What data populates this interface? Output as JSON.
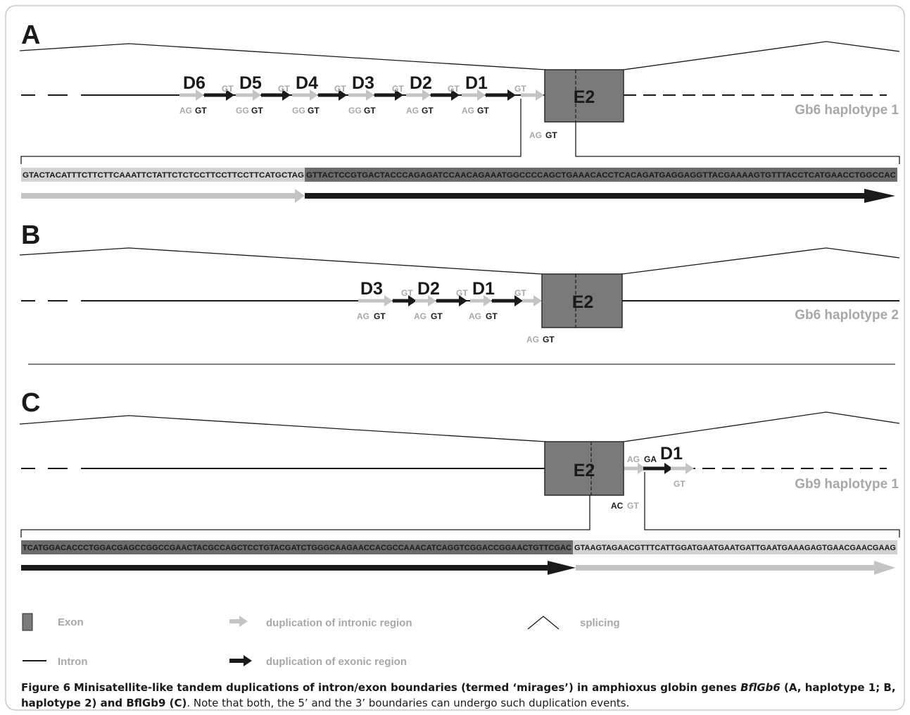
{
  "panels": {
    "A": {
      "letter": "A",
      "haplotype": "Gb6 haplotype 1",
      "exon": "E2",
      "dups": [
        {
          "name": "D6",
          "left": "AG",
          "right": "GT"
        },
        {
          "name": "D5",
          "left": "GG",
          "right": "GT"
        },
        {
          "name": "D4",
          "left": "GG",
          "right": "GT"
        },
        {
          "name": "D3",
          "left": "GG",
          "right": "GT"
        },
        {
          "name": "D2",
          "left": "AG",
          "right": "GT"
        },
        {
          "name": "D1",
          "left": "AG",
          "right": "GT"
        }
      ],
      "small_gt": "GT",
      "exon_site": {
        "left": "AG",
        "right": "GT"
      },
      "seq_intron": "GTACTACATTTCTTCTTCAAATTCTATTCTCTCCTTCCTTCCTTCATGCTAG",
      "seq_exon": "GTTACTCCGTGACTACCCAGAGATCCAACAGAAATGGCCCCAGCTGAAACACCTCACAGATGAGGAGGTTACGAAAAGTGTTTACCTCATGAACCTGGCCAC"
    },
    "B": {
      "letter": "B",
      "haplotype": "Gb6 haplotype 2",
      "exon": "E2",
      "dups": [
        {
          "name": "D3",
          "left": "AG",
          "right": "GT"
        },
        {
          "name": "D2",
          "left": "AG",
          "right": "GT"
        },
        {
          "name": "D1",
          "left": "AG",
          "right": "GT"
        }
      ],
      "small_gt": "GT",
      "exon_site": {
        "left": "AG",
        "right": "GT"
      }
    },
    "C": {
      "letter": "C",
      "haplotype": "Gb9 haplotype 1",
      "exon": "E2",
      "dup_name": "D1",
      "ag_label": "AG",
      "ga_label": "GA",
      "gt_label": "GT",
      "exon_site": {
        "left": "AC",
        "right": "GT"
      },
      "seq_exon": "TCATGGACACCCTGGACGAGCCGGCCGAACTACGCCAGCTCCTGTACGATCTGGGCAAGAACCACGCCAAACATCAGGTCGGACCGGAACTGTTCGAC",
      "seq_intron": "GTAAGTAGAACGTTTCATTGGATGAATGAATGATTGAATGAAAGAGTGAACGAACGAAG"
    }
  },
  "legend": {
    "exon": "Exon",
    "intron": "Intron",
    "intronic_dup": "duplication of intronic region",
    "exonic_dup": "duplication of exonic region",
    "splicing": "splicing"
  },
  "caption": {
    "label": "Figure 6",
    "title_a": "Minisatellite-like tandem duplications of intron/exon boundaries (termed ‘mirages’) in amphioxus globin genes ",
    "gene1": "BflGb6",
    "title_b": " (A, haplotype 1; B, haplotype 2) and BflGb9 (C)",
    "rest": ". Note that both, the 5’ and the 3’ boundaries can undergo such duplication events."
  },
  "colors": {
    "exon_fill": "#7a7a7a",
    "exon_seq_fill": "#6b6b6b",
    "intron_seq_fill": "#d2d2d2",
    "intronic_arrow": "#c4c4c4",
    "exonic_arrow": "#1a1a1a",
    "label_grey": "#a8a8a8",
    "line": "#1a1a1a"
  }
}
